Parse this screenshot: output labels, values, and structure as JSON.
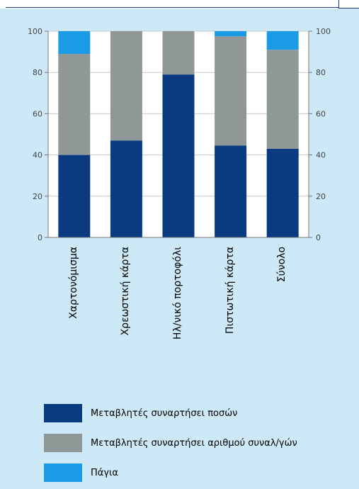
{
  "chart_data": {
    "type": "bar",
    "stacked": true,
    "categories": [
      "Χαρτονόμισμα",
      "Χρεωστική κάρτα",
      "Ηλ/νικό πορτοφόλι",
      "Πιστωτική κάρτα",
      "Σύνολο"
    ],
    "series": [
      {
        "name": "Μεταβλητές συναρτήσει ποσών",
        "color": "#0a3a80",
        "values": [
          40,
          47,
          79,
          44.5,
          43
        ]
      },
      {
        "name": "Μεταβλητές συναρτήσει αριθμού συναλ/γών",
        "color": "#8f9896",
        "values": [
          49,
          53,
          21,
          53,
          48
        ]
      },
      {
        "name": "Πάγια",
        "color": "#1b9be6",
        "values": [
          11,
          0,
          0,
          2.5,
          9
        ]
      }
    ],
    "ylim": [
      0,
      100
    ],
    "yticks": [
      0,
      20,
      40,
      60,
      80,
      100
    ],
    "y_axis_both_sides": true,
    "grid": true,
    "legend_position": "bottom"
  }
}
